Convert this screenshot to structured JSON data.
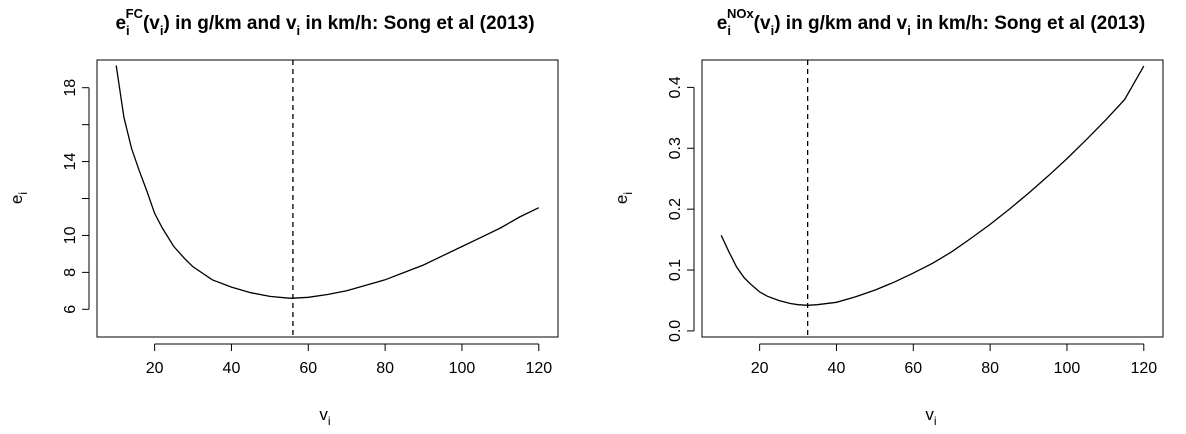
{
  "chart_data": [
    {
      "type": "line",
      "title": {
        "pre": "e",
        "sub": "i",
        "sup": "FC",
        "call": "(v",
        "call_sub": "i",
        "mid": ") in g/km and v",
        "mid_sub": "i",
        "post": " in km/h: Song et al (2013)"
      },
      "xlabel": {
        "main": "v",
        "sub": "i"
      },
      "ylabel": {
        "main": "e",
        "sub": "i"
      },
      "xlim": [
        5,
        125
      ],
      "ylim": [
        4.5,
        19.5
      ],
      "x_ticks": [
        20,
        40,
        60,
        80,
        100,
        120
      ],
      "x_tick_labels": [
        "20",
        "40",
        "60",
        "80",
        "100",
        "120"
      ],
      "y_ticks": [
        6,
        8,
        10,
        12,
        14,
        16,
        18
      ],
      "y_tick_labels": [
        "6",
        "8",
        "10",
        "",
        "14",
        "",
        "18"
      ],
      "grid": false,
      "series": [
        {
          "x": [
            10,
            12,
            14,
            16,
            18,
            20,
            22,
            25,
            28,
            30,
            35,
            40,
            45,
            50,
            55,
            56,
            60,
            65,
            70,
            75,
            80,
            85,
            90,
            95,
            100,
            105,
            110,
            115,
            120
          ],
          "y": [
            19.2,
            16.4,
            14.7,
            13.5,
            12.4,
            11.2,
            10.4,
            9.4,
            8.7,
            8.3,
            7.6,
            7.2,
            6.9,
            6.7,
            6.6,
            6.6,
            6.65,
            6.8,
            7.0,
            7.3,
            7.6,
            8.0,
            8.4,
            8.9,
            9.4,
            9.9,
            10.4,
            11.0,
            11.5
          ]
        }
      ],
      "vline": {
        "x": 56,
        "y_from": 4.5,
        "y_to": 19.5,
        "style": "dashed"
      }
    },
    {
      "type": "line",
      "title": {
        "pre": "e",
        "sub": "i",
        "sup": "NOx",
        "call": "(v",
        "call_sub": "i",
        "mid": ") in g/km and v",
        "mid_sub": "i",
        "post": " in km/h: Song et al (2013)"
      },
      "xlabel": {
        "main": "v",
        "sub": "i"
      },
      "ylabel": {
        "main": "e",
        "sub": "i"
      },
      "xlim": [
        5,
        125
      ],
      "ylim": [
        -0.01,
        0.445
      ],
      "x_ticks": [
        20,
        40,
        60,
        80,
        100,
        120
      ],
      "x_tick_labels": [
        "20",
        "40",
        "60",
        "80",
        "100",
        "120"
      ],
      "y_ticks": [
        0.0,
        0.1,
        0.2,
        0.3,
        0.4
      ],
      "y_tick_labels": [
        "0.0",
        "0.1",
        "0.2",
        "0.3",
        "0.4"
      ],
      "grid": false,
      "series": [
        {
          "x": [
            10,
            12,
            14,
            16,
            18,
            20,
            22,
            25,
            28,
            30,
            32.5,
            35,
            40,
            45,
            50,
            55,
            60,
            65,
            70,
            75,
            80,
            85,
            90,
            95,
            100,
            105,
            110,
            115,
            120
          ],
          "y": [
            0.157,
            0.13,
            0.105,
            0.087,
            0.075,
            0.064,
            0.057,
            0.05,
            0.045,
            0.043,
            0.042,
            0.043,
            0.047,
            0.056,
            0.067,
            0.08,
            0.095,
            0.111,
            0.13,
            0.152,
            0.175,
            0.2,
            0.226,
            0.254,
            0.283,
            0.314,
            0.346,
            0.38,
            0.435
          ]
        }
      ],
      "vline": {
        "x": 32.5,
        "y_from": -0.01,
        "y_to": 0.445,
        "style": "dashed"
      }
    }
  ]
}
